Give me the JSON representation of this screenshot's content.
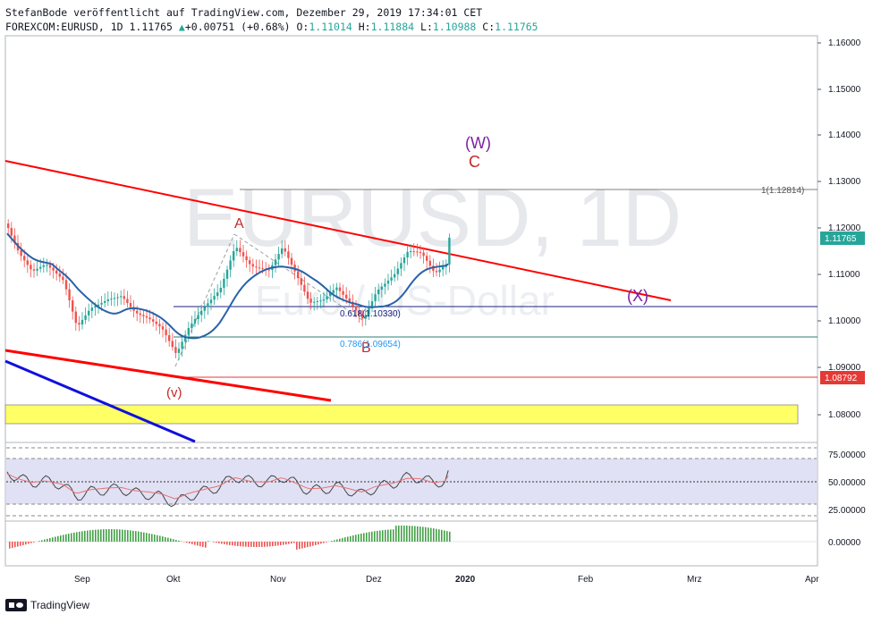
{
  "header": {
    "line1": "StefanBode veröffentlicht auf TradingView.com, Dezember 29, 2019 17:34:01 CET",
    "symbol": "FOREXCOM:EURUSD, 1D",
    "last": "1.11765",
    "change_arrow": "▲",
    "change": "+0.00751 (+0.68%)",
    "o_label": "O:",
    "o": "1.11014",
    "h_label": "H:",
    "h": "1.11884",
    "l_label": "L:",
    "l": "1.10988",
    "c_label": "C:",
    "c": "1.11765"
  },
  "watermark": {
    "symbol": "EURUSD, 1D",
    "name": "Euro / US-Dollar"
  },
  "waves": {
    "W": "(W)",
    "C": "C",
    "A": "A",
    "B": "B",
    "v": "(v)",
    "X": "(X)"
  },
  "fib": {
    "level_1": "1(1.12814)",
    "level_0618": "0.618(1.10330)",
    "level_0786": "0.786(1.09654)"
  },
  "price_axis": {
    "ticks": [
      "1.16000",
      "1.15000",
      "1.14000",
      "1.13000",
      "1.12000",
      "1.11000",
      "1.10000",
      "1.09000",
      "1.08000"
    ],
    "last_price_label": "1.11765",
    "support_label": "1.08792"
  },
  "rsi_axis": {
    "ticks": [
      "75.00000",
      "50.00000",
      "25.00000"
    ]
  },
  "macd_axis": {
    "ticks": [
      "0.00000"
    ]
  },
  "time_axis": {
    "ticks": [
      "Sep",
      "Okt",
      "Nov",
      "Dez",
      "2020",
      "Feb",
      "Mrz",
      "Apr"
    ]
  },
  "colors": {
    "up": "#26a69a",
    "down": "#ef5350",
    "trendline": "#ff0000",
    "blue_line": "#1010dd",
    "ma": "#2962a8",
    "zone": "#ffff66",
    "rsi_band": "#e1e1f5",
    "wave_purple": "#7b1fa2",
    "wave_red": "#c62828"
  },
  "footer": {
    "brand": "TradingView"
  }
}
